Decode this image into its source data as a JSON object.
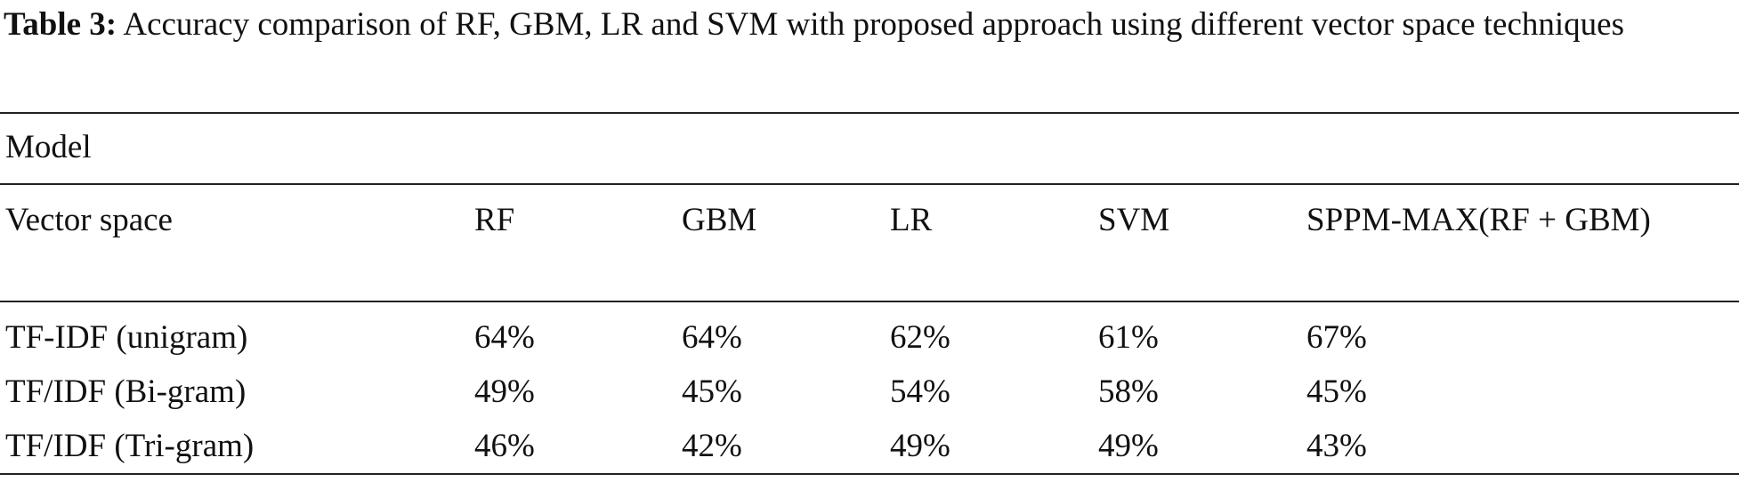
{
  "caption": {
    "label": "Table 3:",
    "text": "Accuracy comparison of RF, GBM, LR and SVM with proposed approach using different vector space techniques"
  },
  "table": {
    "group_header": "Model",
    "columns": [
      "Vector space",
      "RF",
      "GBM",
      "LR",
      "SVM",
      "SPPM-MAX(RF + GBM)"
    ],
    "rows": [
      [
        "TF-IDF (unigram)",
        "64%",
        "64%",
        "62%",
        "61%",
        "67%"
      ],
      [
        "TF/IDF (Bi-gram)",
        "49%",
        "45%",
        "54%",
        "58%",
        "45%"
      ],
      [
        "TF/IDF (Tri-gram)",
        "46%",
        "42%",
        "49%",
        "49%",
        "43%"
      ]
    ]
  }
}
